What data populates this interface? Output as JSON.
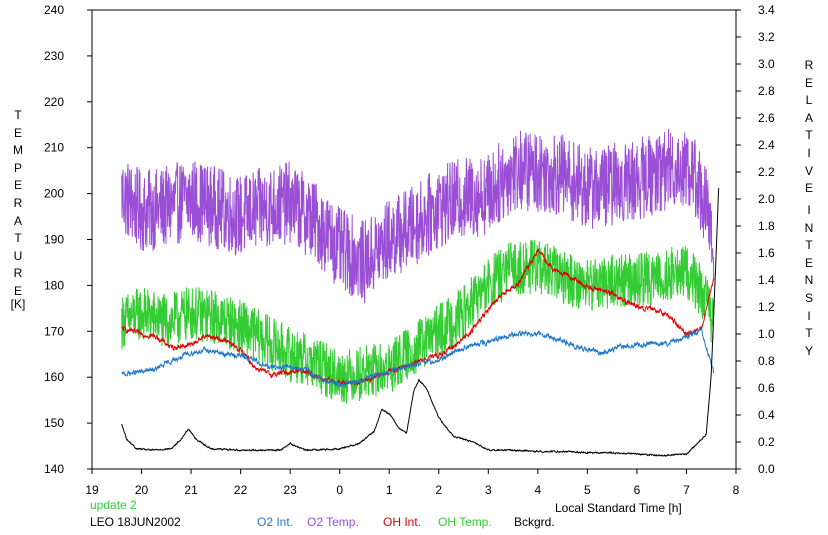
{
  "chart_data": {
    "type": "line",
    "title": "",
    "xlabel": "Local Standard Time [h]",
    "y_left_label_letters": [
      "T",
      "E",
      "M",
      "P",
      "E",
      "R",
      "A",
      "T",
      "U",
      "R",
      "E"
    ],
    "y_left_unit": "[K]",
    "y_right_label_letters_1": [
      "R",
      "E",
      "L",
      "A",
      "T",
      "I",
      "V",
      "E"
    ],
    "y_right_label_letters_2": [
      "I",
      "N",
      "T",
      "E",
      "N",
      "S",
      "I",
      "T",
      "Y"
    ],
    "x_ticks": [
      "19",
      "20",
      "21",
      "22",
      "23",
      "0",
      "1",
      "2",
      "3",
      "4",
      "5",
      "6",
      "7",
      "8"
    ],
    "x_range_hours": [
      19,
      32
    ],
    "y_left_ticks": [
      "140",
      "150",
      "160",
      "170",
      "180",
      "190",
      "200",
      "210",
      "220",
      "230",
      "240"
    ],
    "y_left_range": [
      140,
      240
    ],
    "y_right_ticks": [
      "0.0",
      "0.2",
      "0.4",
      "0.6",
      "0.8",
      "1.0",
      "1.2",
      "1.4",
      "1.6",
      "1.8",
      "2.0",
      "2.2",
      "2.4",
      "2.6",
      "2.8",
      "3.0",
      "3.2",
      "3.4"
    ],
    "y_right_range": [
      0.0,
      3.4
    ],
    "grid": false,
    "update_text": "update 2",
    "station_text": "LEO 18JUN2002",
    "legend_position": "bottom",
    "series": [
      {
        "name": "O2 Temp.",
        "axis": "left",
        "color": "#9a4fd6",
        "noise": 9,
        "x": [
          19.6,
          20.0,
          20.5,
          21.0,
          21.5,
          22.0,
          22.5,
          23.0,
          23.5,
          24.0,
          24.5,
          25.0,
          25.5,
          26.0,
          26.5,
          27.0,
          27.5,
          28.0,
          28.5,
          29.0,
          29.5,
          30.0,
          30.5,
          31.0,
          31.2,
          31.4,
          31.5,
          31.55
        ],
        "y": [
          200,
          196,
          197,
          199,
          197,
          195,
          197,
          198,
          194,
          188,
          185,
          190,
          193,
          197,
          199,
          200,
          205,
          205,
          204,
          201,
          202,
          203,
          205,
          206,
          203,
          197,
          190,
          186
        ]
      },
      {
        "name": "OH Temp.",
        "axis": "left",
        "color": "#33cc33",
        "noise": 6,
        "x": [
          19.6,
          20.0,
          20.5,
          21.0,
          21.5,
          22.0,
          22.5,
          23.0,
          23.5,
          24.0,
          24.5,
          25.0,
          25.5,
          26.0,
          26.5,
          27.0,
          27.5,
          28.0,
          28.5,
          29.0,
          29.5,
          30.0,
          30.5,
          31.0,
          31.3,
          31.55
        ],
        "y": [
          172,
          174,
          172,
          174,
          173,
          171,
          168,
          165,
          163,
          160,
          161,
          162,
          166,
          170,
          174,
          180,
          184,
          184,
          182,
          180,
          181,
          181,
          182,
          183,
          179,
          172
        ]
      },
      {
        "name": "OH Int.",
        "axis": "right",
        "color": "#e00000",
        "noise": 0.02,
        "x": [
          19.6,
          20.0,
          20.3,
          20.6,
          21.0,
          21.3,
          21.7,
          22.0,
          22.3,
          22.6,
          23.0,
          23.3,
          23.6,
          24.0,
          24.3,
          24.6,
          25.0,
          25.3,
          25.6,
          26.0,
          26.3,
          26.6,
          27.0,
          27.3,
          27.6,
          28.0,
          28.3,
          28.6,
          29.0,
          29.3,
          29.6,
          30.0,
          30.3,
          30.6,
          31.0,
          31.3,
          31.55
        ],
        "y": [
          1.04,
          1.0,
          0.98,
          0.9,
          0.92,
          0.99,
          0.95,
          0.88,
          0.75,
          0.7,
          0.72,
          0.73,
          0.67,
          0.64,
          0.64,
          0.66,
          0.72,
          0.76,
          0.8,
          0.84,
          0.91,
          1.0,
          1.18,
          1.3,
          1.37,
          1.62,
          1.48,
          1.43,
          1.35,
          1.33,
          1.28,
          1.2,
          1.18,
          1.15,
          1.0,
          1.04,
          1.4
        ]
      },
      {
        "name": "O2 Int.",
        "axis": "right",
        "color": "#1f78c8",
        "noise": 0.02,
        "x": [
          19.6,
          20.0,
          20.3,
          20.6,
          21.0,
          21.3,
          21.7,
          22.0,
          22.3,
          22.6,
          23.0,
          23.3,
          23.6,
          24.0,
          24.3,
          24.6,
          25.0,
          25.3,
          25.6,
          26.0,
          26.3,
          26.6,
          27.0,
          27.3,
          27.6,
          28.0,
          28.3,
          28.6,
          29.0,
          29.3,
          29.6,
          30.0,
          30.3,
          30.6,
          31.0,
          31.3,
          31.55
        ],
        "y": [
          0.7,
          0.72,
          0.74,
          0.8,
          0.86,
          0.88,
          0.85,
          0.84,
          0.8,
          0.75,
          0.76,
          0.74,
          0.67,
          0.62,
          0.64,
          0.68,
          0.72,
          0.75,
          0.78,
          0.8,
          0.87,
          0.91,
          0.94,
          0.97,
          1.0,
          1.01,
          0.97,
          0.93,
          0.88,
          0.86,
          0.9,
          0.92,
          0.93,
          0.92,
          0.98,
          1.03,
          0.72
        ]
      },
      {
        "name": "Bckgrd.",
        "axis": "right",
        "color": "#000000",
        "noise": 0.006,
        "x": [
          19.6,
          19.7,
          19.9,
          20.2,
          20.6,
          20.8,
          20.95,
          21.1,
          21.4,
          22.0,
          22.5,
          22.8,
          23.0,
          23.3,
          24.0,
          24.4,
          24.7,
          24.85,
          25.0,
          25.2,
          25.35,
          25.5,
          25.6,
          25.75,
          26.0,
          26.3,
          26.7,
          27.0,
          27.5,
          28.0,
          28.5,
          29.0,
          29.5,
          30.0,
          30.5,
          31.0,
          31.2,
          31.4,
          31.5,
          31.6,
          31.65
        ],
        "y": [
          0.33,
          0.22,
          0.15,
          0.14,
          0.15,
          0.22,
          0.3,
          0.22,
          0.15,
          0.14,
          0.14,
          0.14,
          0.19,
          0.14,
          0.15,
          0.19,
          0.28,
          0.44,
          0.41,
          0.3,
          0.27,
          0.58,
          0.66,
          0.6,
          0.38,
          0.24,
          0.2,
          0.14,
          0.14,
          0.13,
          0.13,
          0.12,
          0.12,
          0.11,
          0.1,
          0.11,
          0.18,
          0.26,
          0.7,
          1.6,
          2.08
        ]
      }
    ]
  }
}
